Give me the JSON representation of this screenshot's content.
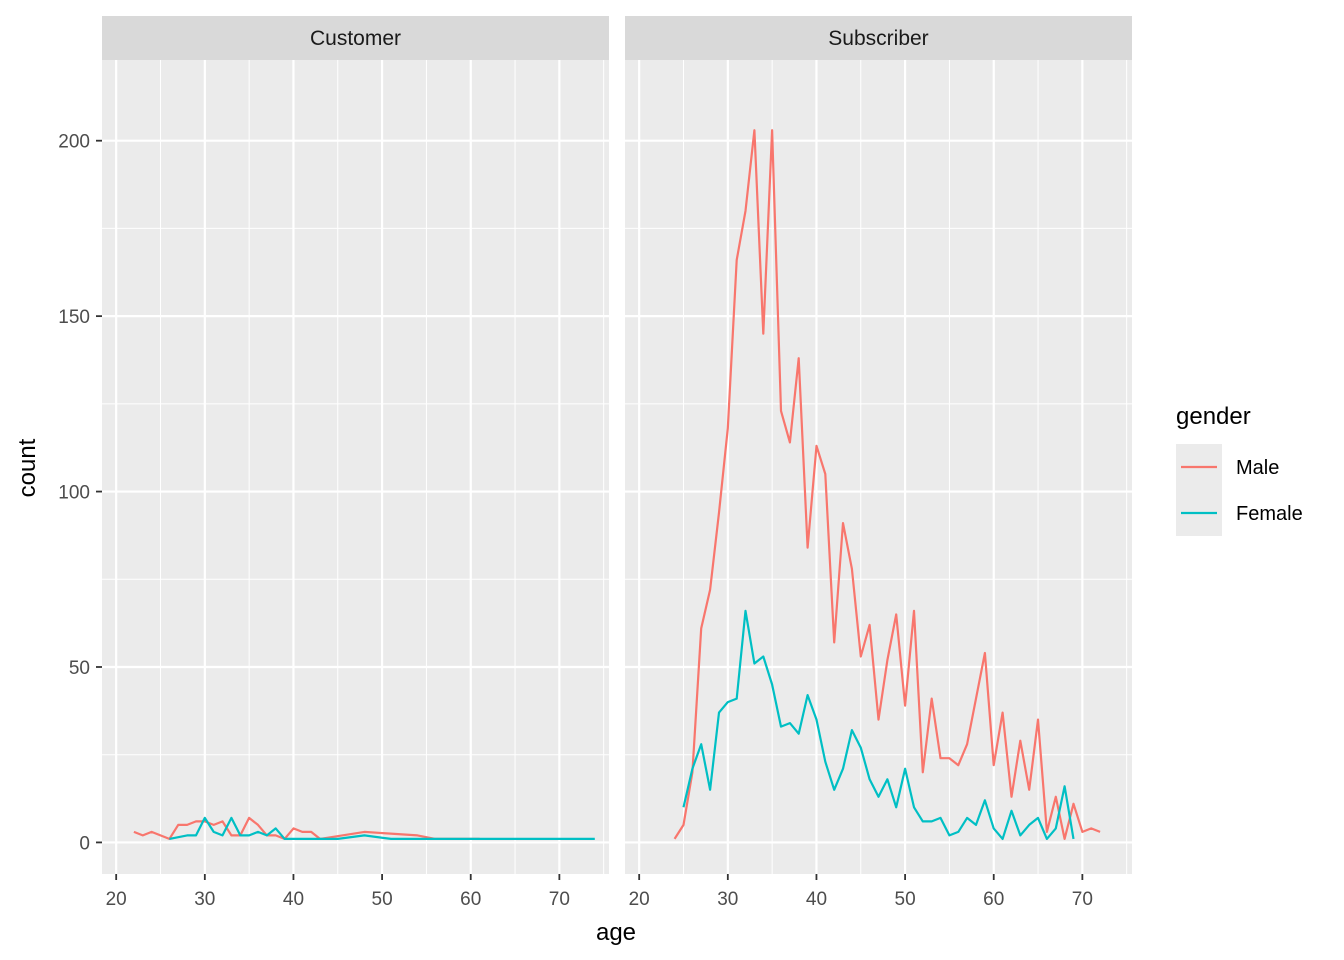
{
  "chart_data": {
    "type": "line",
    "xlabel": "age",
    "ylabel": "count",
    "xlim": [
      18.4,
      75.6
    ],
    "ylim": [
      -9,
      223
    ],
    "x_ticks": [
      20,
      30,
      40,
      50,
      60,
      70
    ],
    "y_ticks": [
      0,
      50,
      100,
      150,
      200
    ],
    "grid": true,
    "legend": {
      "title": "gender",
      "placement": "right",
      "entries": [
        {
          "label": "Male",
          "color": "#F8766D"
        },
        {
          "label": "Female",
          "color": "#00BFC4"
        }
      ]
    },
    "facets": [
      {
        "label": "Customer",
        "series": [
          {
            "name": "Male",
            "color": "#F8766D",
            "x": [
              22,
              23,
              24,
              26,
              27,
              28,
              29,
              30,
              31,
              32,
              33,
              34,
              35,
              36,
              37,
              38,
              39,
              40,
              41,
              42,
              43,
              48,
              54,
              56,
              61
            ],
            "y": [
              3,
              2,
              3,
              1,
              5,
              5,
              6,
              6,
              5,
              6,
              2,
              2,
              7,
              5,
              2,
              2,
              1,
              4,
              3,
              3,
              1,
              3,
              2,
              1,
              1
            ]
          },
          {
            "name": "Female",
            "color": "#00BFC4",
            "x": [
              26,
              28,
              29,
              30,
              31,
              32,
              33,
              34,
              35,
              36,
              37,
              38,
              39,
              40,
              42,
              45,
              48,
              51,
              55,
              60,
              65,
              70,
              74
            ],
            "y": [
              1,
              2,
              2,
              7,
              3,
              2,
              7,
              2,
              2,
              3,
              2,
              4,
              1,
              1,
              1,
              1,
              2,
              1,
              1,
              1,
              1,
              1,
              1
            ]
          }
        ]
      },
      {
        "label": "Subscriber",
        "series": [
          {
            "name": "Male",
            "color": "#F8766D",
            "x": [
              24,
              25,
              26,
              27,
              28,
              29,
              30,
              31,
              32,
              33,
              34,
              35,
              36,
              37,
              38,
              39,
              40,
              41,
              42,
              43,
              44,
              45,
              46,
              47,
              48,
              49,
              50,
              51,
              52,
              53,
              54,
              55,
              56,
              57,
              58,
              59,
              60,
              61,
              62,
              63,
              64,
              65,
              66,
              67,
              68,
              69,
              70,
              71,
              72
            ],
            "y": [
              1,
              5,
              20,
              61,
              72,
              94,
              118,
              166,
              180,
              203,
              145,
              203,
              123,
              114,
              138,
              84,
              113,
              105,
              57,
              91,
              78,
              53,
              62,
              35,
              52,
              65,
              39,
              66,
              20,
              41,
              24,
              24,
              22,
              28,
              41,
              54,
              22,
              37,
              13,
              29,
              15,
              35,
              3,
              13,
              1,
              11,
              3,
              4,
              3
            ]
          },
          {
            "name": "Female",
            "color": "#00BFC4",
            "x": [
              25,
              26,
              27,
              28,
              29,
              30,
              31,
              32,
              33,
              34,
              35,
              36,
              37,
              38,
              39,
              40,
              41,
              42,
              43,
              44,
              45,
              46,
              47,
              48,
              49,
              50,
              51,
              52,
              53,
              54,
              55,
              56,
              57,
              58,
              59,
              60,
              61,
              62,
              63,
              64,
              65,
              66,
              67,
              68,
              69
            ],
            "y": [
              10,
              21,
              28,
              15,
              37,
              40,
              41,
              66,
              51,
              53,
              45,
              33,
              34,
              31,
              42,
              35,
              23,
              15,
              21,
              32,
              27,
              18,
              13,
              18,
              10,
              21,
              10,
              6,
              6,
              7,
              2,
              3,
              7,
              5,
              12,
              4,
              1,
              9,
              2,
              5,
              7,
              1,
              4,
              16,
              1
            ]
          }
        ]
      }
    ]
  }
}
